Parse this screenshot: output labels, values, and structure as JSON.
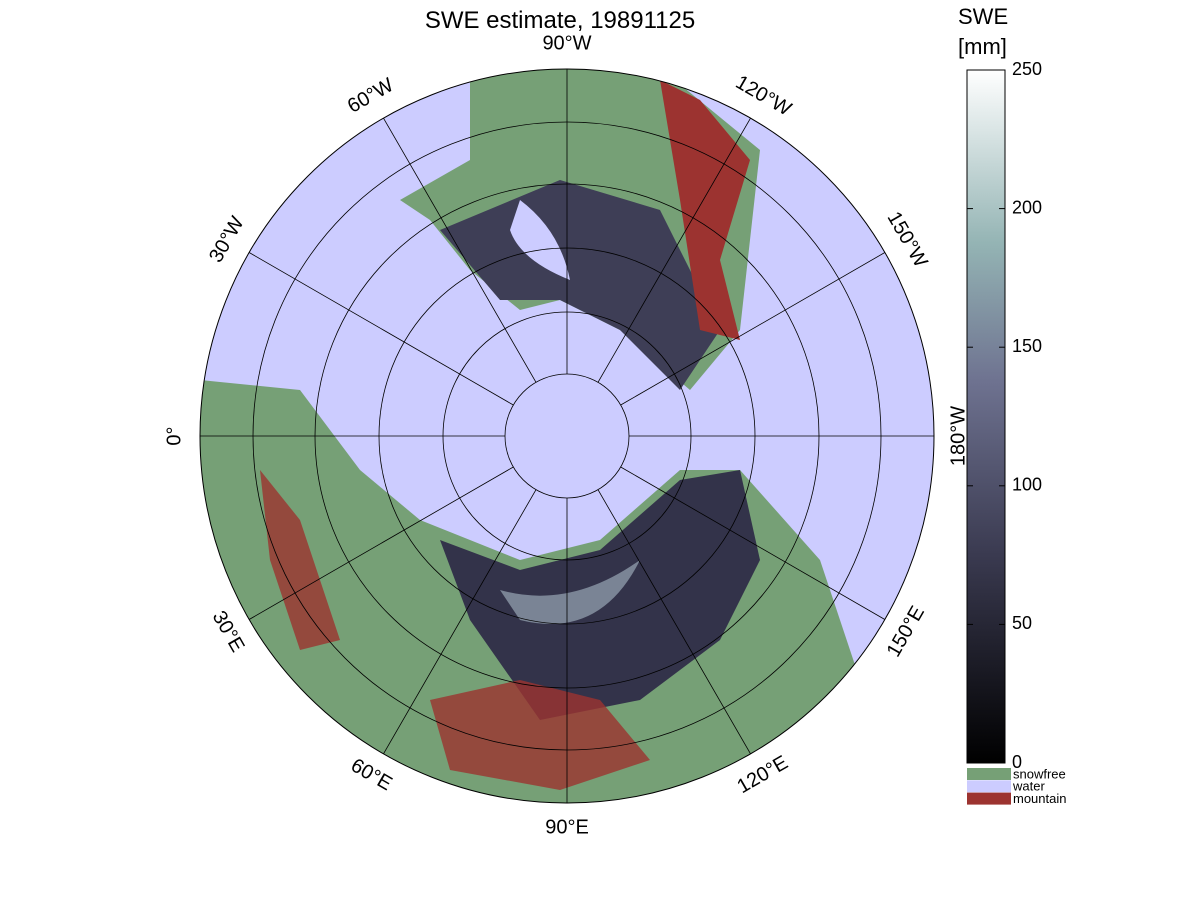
{
  "title": "SWE estimate, 19891125",
  "longitude_labels": [
    "0°",
    "30°E",
    "60°E",
    "90°E",
    "120°E",
    "150°E",
    "180°W",
    "150°W",
    "120°W",
    "90°W",
    "60°W",
    "30°W"
  ],
  "colorbar": {
    "title": [
      "SWE",
      "[mm]"
    ],
    "lim": [
      0,
      250
    ],
    "ticks": [
      0,
      50,
      100,
      150,
      200,
      250
    ]
  },
  "legend": [
    {
      "name": "snowfree",
      "color": "#76a076"
    },
    {
      "name": "water",
      "color": "#ccccff"
    },
    {
      "name": "mountain",
      "color": "#9c3330"
    }
  ]
}
